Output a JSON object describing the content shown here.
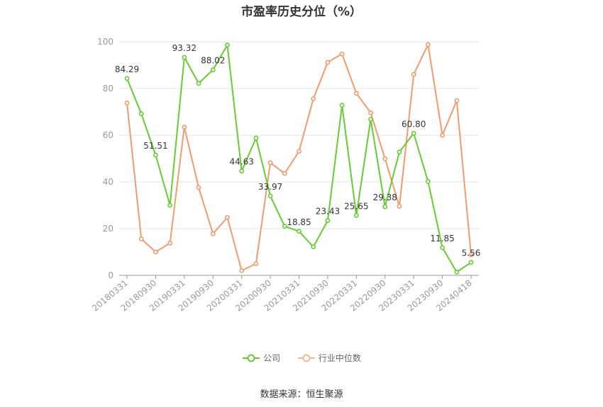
{
  "chart_data": {
    "type": "line",
    "title": "市盈率历史分位（%）",
    "ylim": [
      0,
      100
    ],
    "yticks": [
      0,
      20,
      40,
      60,
      80,
      100
    ],
    "grid": true,
    "legend_position": "bottom",
    "x_tick_labels": [
      "20180331",
      "20180930",
      "20190331",
      "20190930",
      "20200331",
      "20200930",
      "20210331",
      "20210930",
      "20220331",
      "20220930",
      "20230331",
      "20230930",
      "20240418"
    ],
    "x": [
      "20180331",
      "20180630",
      "20180930",
      "20181231",
      "20190331",
      "20190630",
      "20190930",
      "20191231",
      "20200331",
      "20200630",
      "20200930",
      "20201231",
      "20210331",
      "20210630",
      "20210930",
      "20211231",
      "20220331",
      "20220630",
      "20220930",
      "20221231",
      "20230331",
      "20230630",
      "20230930",
      "20231231",
      "20240418"
    ],
    "series": [
      {
        "name": "公司",
        "color": "#66cc33",
        "values": [
          84.29,
          69.2,
          51.51,
          30.0,
          93.32,
          82.2,
          88.02,
          98.6,
          44.63,
          58.8,
          33.97,
          21.0,
          18.85,
          12.2,
          23.43,
          72.8,
          25.65,
          66.8,
          29.38,
          52.8,
          60.8,
          40.2,
          11.85,
          1.4,
          5.56
        ],
        "data_labels": {
          "0": "84.29",
          "2": "51.51",
          "4": "93.32",
          "6": "88.02",
          "8": "44.63",
          "10": "33.97",
          "12": "18.85",
          "14": "23.43",
          "16": "25.65",
          "18": "29.38",
          "20": "60.80",
          "22": "11.85",
          "24": "5.56"
        }
      },
      {
        "name": "行业中位数",
        "color": "#f39a6f",
        "values": [
          73.8,
          15.6,
          10.0,
          13.8,
          63.5,
          37.6,
          17.8,
          24.8,
          2.0,
          5.0,
          48.2,
          43.6,
          53.1,
          75.6,
          91.2,
          94.8,
          77.9,
          69.6,
          49.9,
          29.6,
          86.0,
          98.8,
          60.0,
          74.8,
          8.8
        ]
      }
    ]
  },
  "footer": {
    "source": "数据来源：恒生聚源"
  }
}
